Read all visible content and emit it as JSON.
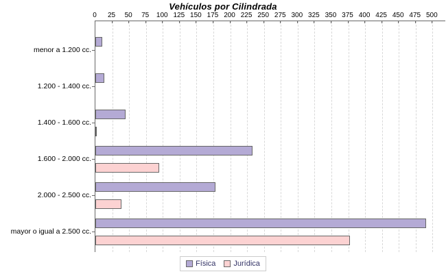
{
  "chart_data": {
    "type": "bar",
    "orientation": "horizontal",
    "title": "Vehículos por Cilindrada",
    "categories": [
      "menor a 1.200 cc.",
      "1.200 - 1.400 cc.",
      "1.400 - 1.600 cc.",
      "1.600 - 2.000 cc.",
      "2.000 - 2.500 cc.",
      "mayor o igual a 2.500 cc."
    ],
    "series": [
      {
        "name": "Física",
        "color": "#b4aad5",
        "border_color": "#666666",
        "values": [
          10,
          13,
          45,
          233,
          178,
          490
        ]
      },
      {
        "name": "Jurídica",
        "color": "#fcd2d2",
        "border_color": "#666666",
        "values": [
          0,
          0,
          2,
          95,
          39,
          378
        ]
      }
    ],
    "xlim": [
      0,
      520
    ],
    "xticks": [
      0,
      25,
      50,
      75,
      100,
      125,
      150,
      175,
      200,
      225,
      250,
      275,
      300,
      325,
      350,
      375,
      400,
      425,
      450,
      475,
      500
    ],
    "grid": "vertical-dashed",
    "legend_position": "bottom",
    "colors": {
      "background": "#ffffff",
      "axis_line": "#666666",
      "gridline": "#d8d8d8",
      "tick_label": "#000000",
      "category_label": "#000000",
      "title": "#000000",
      "legend_text": "#333366",
      "legend_border": "#cccccc"
    }
  }
}
